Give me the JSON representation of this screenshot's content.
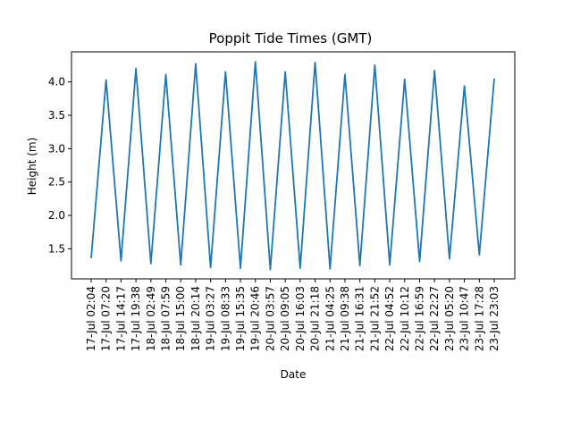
{
  "chart_data": {
    "type": "line",
    "title": "Poppit Tide Times (GMT)",
    "xlabel": "Date",
    "ylabel": "Height (m)",
    "ylim": [
      1.05,
      4.45
    ],
    "yticks": [
      "1.5",
      "2.0",
      "2.5",
      "3.0",
      "3.5",
      "4.0"
    ],
    "grid": false,
    "legend": "none",
    "color": "#1f77b4",
    "x": [
      "17-Jul 02:04",
      "17-Jul 07:20",
      "17-Jul 14:17",
      "17-Jul 19:38",
      "18-Jul 02:49",
      "18-Jul 07:59",
      "18-Jul 15:00",
      "18-Jul 20:14",
      "19-Jul 03:27",
      "19-Jul 08:33",
      "19-Jul 15:35",
      "19-Jul 20:46",
      "20-Jul 03:57",
      "20-Jul 09:05",
      "20-Jul 16:03",
      "20-Jul 21:18",
      "21-Jul 04:25",
      "21-Jul 09:38",
      "21-Jul 16:31",
      "21-Jul 21:52",
      "22-Jul 04:52",
      "22-Jul 10:12",
      "22-Jul 16:59",
      "22-Jul 22:27",
      "23-Jul 05:20",
      "23-Jul 10:47",
      "23-Jul 17:28",
      "23-Jul 23:03"
    ],
    "series": [
      {
        "values": [
          1.36,
          4.03,
          1.32,
          4.2,
          1.28,
          4.11,
          1.26,
          4.27,
          1.22,
          4.15,
          1.21,
          4.3,
          1.19,
          4.15,
          1.21,
          4.29,
          1.2,
          4.11,
          1.25,
          4.25,
          1.26,
          4.04,
          1.31,
          4.17,
          1.35,
          3.94,
          1.41,
          4.05
        ]
      }
    ]
  }
}
